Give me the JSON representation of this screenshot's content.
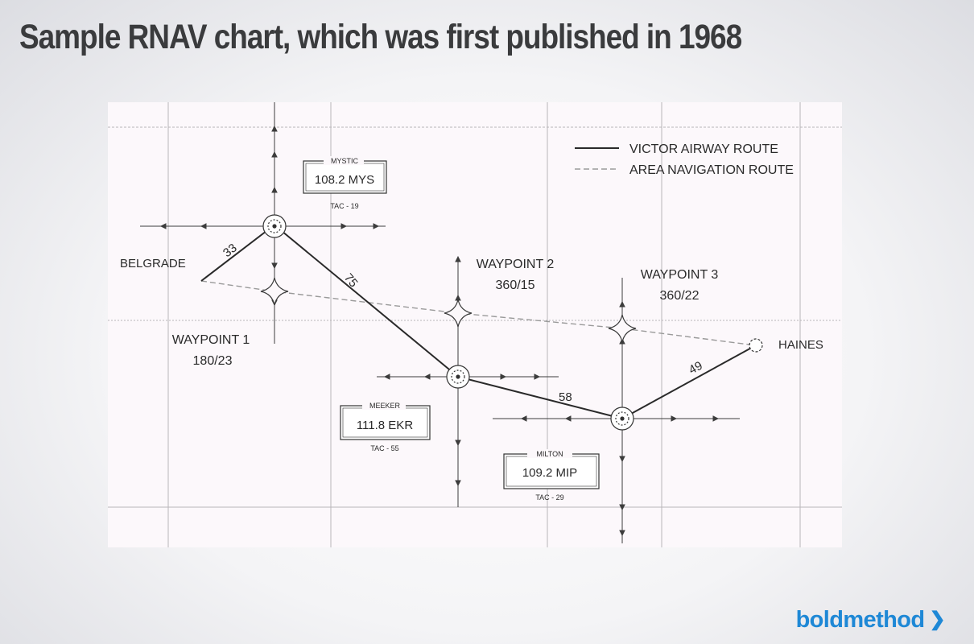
{
  "title": "Sample RNAV chart, which was first published in 1968",
  "legend": {
    "victor": "VICTOR AIRWAY ROUTE",
    "rnav": "AREA NAVIGATION ROUTE"
  },
  "places": {
    "belgrade": "BELGRADE",
    "haines": "HAINES"
  },
  "waypoints": [
    {
      "name": "WAYPOINT 1",
      "radial": "180/23"
    },
    {
      "name": "WAYPOINT 2",
      "radial": "360/15"
    },
    {
      "name": "WAYPOINT 3",
      "radial": "360/22"
    }
  ],
  "stations": [
    {
      "name": "MYSTIC",
      "freq": "108.2 MYS",
      "tac": "TAC - 19"
    },
    {
      "name": "MEEKER",
      "freq": "111.8 EKR",
      "tac": "TAC - 55"
    },
    {
      "name": "MILTON",
      "freq": "109.2 MIP",
      "tac": "TAC - 29"
    }
  ],
  "distances": [
    "33",
    "75",
    "58",
    "49"
  ],
  "colors": {
    "brand": "#1e88d6",
    "title": "#3a3b3d",
    "line": "#2a2a2a"
  },
  "brand": {
    "name": "boldmethod",
    "chevron": "❯"
  }
}
